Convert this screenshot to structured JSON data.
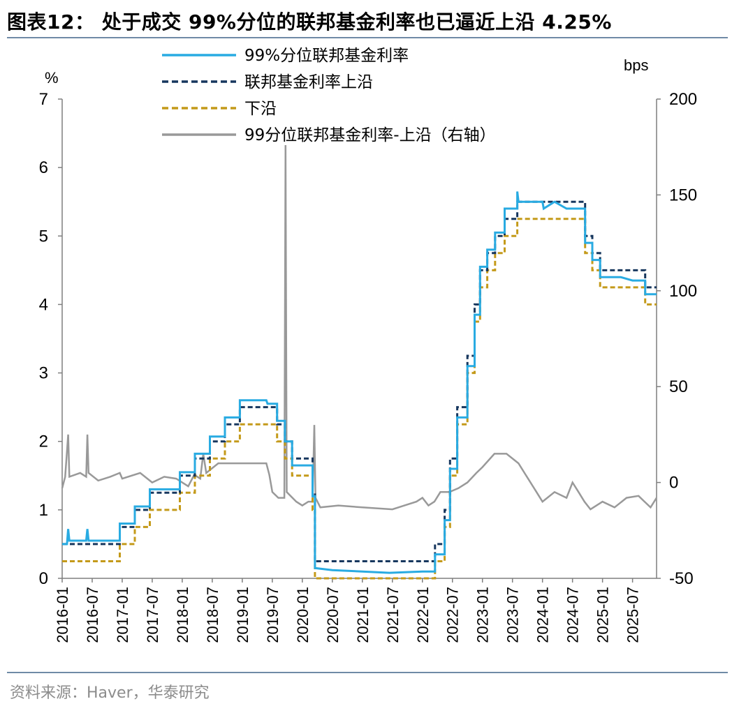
{
  "header": {
    "title": "图表12： 处于成交 99%分位的联邦基金利率也已逼近上沿 4.25%"
  },
  "footer": {
    "source": "资料来源：Haver，华泰研究"
  },
  "chart_data": {
    "type": "line",
    "left_axis": {
      "unit": "%",
      "min": 0,
      "max": 7,
      "ticks": [
        "0",
        "1",
        "2",
        "3",
        "4",
        "5",
        "6",
        "7"
      ]
    },
    "right_axis": {
      "unit": "bps",
      "min": -50,
      "max": 200,
      "ticks": [
        "-50",
        "0",
        "50",
        "100",
        "150",
        "200"
      ]
    },
    "x_axis": {
      "min": 2016.0,
      "max": 2025.9,
      "ticks": [
        "2016-01",
        "2016-07",
        "2017-01",
        "2017-07",
        "2018-01",
        "2018-07",
        "2019-01",
        "2019-07",
        "2020-01",
        "2020-07",
        "2021-01",
        "2021-07",
        "2022-01",
        "2022-07",
        "2023-01",
        "2023-07",
        "2024-01",
        "2024-07",
        "2025-01",
        "2025-07"
      ]
    },
    "legend": {
      "placement": "top",
      "items": [
        {
          "key": "p99",
          "label": "99%分位联邦基金利率",
          "style": "solid",
          "color": "#29abe2"
        },
        {
          "key": "upper",
          "label": "联邦基金利率上沿",
          "style": "dashed",
          "color": "#17375e"
        },
        {
          "key": "lower",
          "label": "下沿",
          "style": "dashed",
          "color": "#c49a1a"
        },
        {
          "key": "spread",
          "label": "99分位联邦基金利率-上沿（右轴）",
          "style": "solid",
          "color": "#999999"
        }
      ]
    },
    "series": [
      {
        "key": "upper",
        "axis": "left",
        "points": [
          [
            2016.0,
            0.5
          ],
          [
            2016.96,
            0.75
          ],
          [
            2017.21,
            1.0
          ],
          [
            2017.46,
            1.25
          ],
          [
            2017.96,
            1.5
          ],
          [
            2018.21,
            1.75
          ],
          [
            2018.46,
            2.0
          ],
          [
            2018.71,
            2.25
          ],
          [
            2018.96,
            2.5
          ],
          [
            2019.58,
            2.25
          ],
          [
            2019.71,
            2.0
          ],
          [
            2019.83,
            1.75
          ],
          [
            2020.17,
            1.25
          ],
          [
            2020.21,
            0.25
          ],
          [
            2022.21,
            0.5
          ],
          [
            2022.37,
            1.0
          ],
          [
            2022.46,
            1.75
          ],
          [
            2022.58,
            2.5
          ],
          [
            2022.75,
            3.25
          ],
          [
            2022.87,
            4.0
          ],
          [
            2022.96,
            4.5
          ],
          [
            2023.08,
            4.75
          ],
          [
            2023.21,
            5.0
          ],
          [
            2023.37,
            5.25
          ],
          [
            2023.58,
            5.5
          ],
          [
            2024.71,
            5.0
          ],
          [
            2024.83,
            4.75
          ],
          [
            2024.96,
            4.5
          ],
          [
            2025.71,
            4.25
          ],
          [
            2025.9,
            4.25
          ]
        ]
      },
      {
        "key": "lower",
        "axis": "left",
        "points": [
          [
            2016.0,
            0.25
          ],
          [
            2016.96,
            0.5
          ],
          [
            2017.21,
            0.75
          ],
          [
            2017.46,
            1.0
          ],
          [
            2017.96,
            1.25
          ],
          [
            2018.21,
            1.5
          ],
          [
            2018.46,
            1.75
          ],
          [
            2018.71,
            2.0
          ],
          [
            2018.96,
            2.25
          ],
          [
            2019.58,
            2.0
          ],
          [
            2019.71,
            1.75
          ],
          [
            2019.83,
            1.5
          ],
          [
            2020.17,
            1.0
          ],
          [
            2020.21,
            0.0
          ],
          [
            2022.21,
            0.25
          ],
          [
            2022.37,
            0.75
          ],
          [
            2022.46,
            1.5
          ],
          [
            2022.58,
            2.25
          ],
          [
            2022.75,
            3.0
          ],
          [
            2022.87,
            3.75
          ],
          [
            2022.96,
            4.25
          ],
          [
            2023.08,
            4.5
          ],
          [
            2023.21,
            4.75
          ],
          [
            2023.37,
            5.0
          ],
          [
            2023.58,
            5.25
          ],
          [
            2024.71,
            4.75
          ],
          [
            2024.83,
            4.5
          ],
          [
            2024.96,
            4.25
          ],
          [
            2025.71,
            4.0
          ],
          [
            2025.9,
            4.0
          ]
        ]
      },
      {
        "key": "p99",
        "axis": "left",
        "points": [
          [
            2016.0,
            0.5
          ],
          [
            2016.08,
            0.5
          ],
          [
            2016.1,
            0.72
          ],
          [
            2016.12,
            0.55
          ],
          [
            2016.4,
            0.55
          ],
          [
            2016.42,
            0.72
          ],
          [
            2016.44,
            0.55
          ],
          [
            2016.96,
            0.55
          ],
          [
            2016.96,
            0.8
          ],
          [
            2017.21,
            0.8
          ],
          [
            2017.21,
            1.05
          ],
          [
            2017.46,
            1.05
          ],
          [
            2017.46,
            1.3
          ],
          [
            2017.96,
            1.3
          ],
          [
            2017.96,
            1.55
          ],
          [
            2018.21,
            1.55
          ],
          [
            2018.21,
            1.82
          ],
          [
            2018.46,
            1.82
          ],
          [
            2018.46,
            2.07
          ],
          [
            2018.71,
            2.07
          ],
          [
            2018.71,
            2.35
          ],
          [
            2018.96,
            2.35
          ],
          [
            2018.96,
            2.6
          ],
          [
            2019.4,
            2.6
          ],
          [
            2019.42,
            2.55
          ],
          [
            2019.58,
            2.55
          ],
          [
            2019.58,
            2.3
          ],
          [
            2019.71,
            2.3
          ],
          [
            2019.71,
            2.0
          ],
          [
            2019.83,
            2.0
          ],
          [
            2019.83,
            1.65
          ],
          [
            2020.17,
            1.65
          ],
          [
            2020.17,
            1.2
          ],
          [
            2020.21,
            1.2
          ],
          [
            2020.21,
            0.15
          ],
          [
            2020.5,
            0.12
          ],
          [
            2021.0,
            0.1
          ],
          [
            2021.45,
            0.08
          ],
          [
            2022.0,
            0.1
          ],
          [
            2022.21,
            0.1
          ],
          [
            2022.21,
            0.35
          ],
          [
            2022.37,
            0.35
          ],
          [
            2022.37,
            0.85
          ],
          [
            2022.46,
            0.85
          ],
          [
            2022.46,
            1.6
          ],
          [
            2022.58,
            1.6
          ],
          [
            2022.58,
            2.35
          ],
          [
            2022.75,
            2.35
          ],
          [
            2022.75,
            3.1
          ],
          [
            2022.87,
            3.1
          ],
          [
            2022.87,
            3.85
          ],
          [
            2022.96,
            3.85
          ],
          [
            2022.96,
            4.55
          ],
          [
            2023.08,
            4.55
          ],
          [
            2023.08,
            4.8
          ],
          [
            2023.21,
            4.8
          ],
          [
            2023.21,
            5.05
          ],
          [
            2023.37,
            5.05
          ],
          [
            2023.37,
            5.4
          ],
          [
            2023.58,
            5.4
          ],
          [
            2023.58,
            5.65
          ],
          [
            2023.6,
            5.5
          ],
          [
            2024.0,
            5.5
          ],
          [
            2024.02,
            5.4
          ],
          [
            2024.2,
            5.5
          ],
          [
            2024.4,
            5.4
          ],
          [
            2024.71,
            5.4
          ],
          [
            2024.71,
            4.9
          ],
          [
            2024.83,
            4.9
          ],
          [
            2024.83,
            4.65
          ],
          [
            2024.96,
            4.65
          ],
          [
            2024.96,
            4.4
          ],
          [
            2025.3,
            4.4
          ],
          [
            2025.5,
            4.35
          ],
          [
            2025.71,
            4.35
          ],
          [
            2025.71,
            4.15
          ],
          [
            2025.9,
            4.15
          ]
        ]
      },
      {
        "key": "spread",
        "axis": "right",
        "points": [
          [
            2016.0,
            -3
          ],
          [
            2016.05,
            3
          ],
          [
            2016.1,
            25
          ],
          [
            2016.12,
            3
          ],
          [
            2016.3,
            5
          ],
          [
            2016.4,
            3
          ],
          [
            2016.42,
            25
          ],
          [
            2016.44,
            5
          ],
          [
            2016.6,
            1
          ],
          [
            2016.8,
            3
          ],
          [
            2016.96,
            5
          ],
          [
            2017.0,
            2
          ],
          [
            2017.3,
            5
          ],
          [
            2017.5,
            0
          ],
          [
            2017.7,
            3
          ],
          [
            2017.9,
            2
          ],
          [
            2018.1,
            -2
          ],
          [
            2018.2,
            4
          ],
          [
            2018.3,
            2
          ],
          [
            2018.35,
            15
          ],
          [
            2018.4,
            5
          ],
          [
            2018.6,
            10
          ],
          [
            2018.8,
            10
          ],
          [
            2018.96,
            10
          ],
          [
            2019.2,
            10
          ],
          [
            2019.4,
            10
          ],
          [
            2019.45,
            4
          ],
          [
            2019.5,
            -5
          ],
          [
            2019.6,
            -8
          ],
          [
            2019.7,
            -8
          ],
          [
            2019.72,
            176
          ],
          [
            2019.74,
            -5
          ],
          [
            2019.9,
            -10
          ],
          [
            2020.0,
            -12
          ],
          [
            2020.1,
            -10
          ],
          [
            2020.17,
            -10
          ],
          [
            2020.2,
            30
          ],
          [
            2020.22,
            -8
          ],
          [
            2020.3,
            -13
          ],
          [
            2020.6,
            -12
          ],
          [
            2021.0,
            -13
          ],
          [
            2021.5,
            -14
          ],
          [
            2021.7,
            -12
          ],
          [
            2021.9,
            -10
          ],
          [
            2022.0,
            -8
          ],
          [
            2022.1,
            -12
          ],
          [
            2022.2,
            -10
          ],
          [
            2022.3,
            -5
          ],
          [
            2022.45,
            -5
          ],
          [
            2022.6,
            -3
          ],
          [
            2022.75,
            0
          ],
          [
            2022.9,
            5
          ],
          [
            2023.0,
            8
          ],
          [
            2023.2,
            15
          ],
          [
            2023.4,
            15
          ],
          [
            2023.6,
            10
          ],
          [
            2023.7,
            5
          ],
          [
            2023.8,
            0
          ],
          [
            2023.9,
            -5
          ],
          [
            2024.0,
            -10
          ],
          [
            2024.2,
            -5
          ],
          [
            2024.4,
            -8
          ],
          [
            2024.5,
            0
          ],
          [
            2024.6,
            -5
          ],
          [
            2024.7,
            -10
          ],
          [
            2024.8,
            -14
          ],
          [
            2025.0,
            -10
          ],
          [
            2025.2,
            -13
          ],
          [
            2025.4,
            -8
          ],
          [
            2025.6,
            -7
          ],
          [
            2025.7,
            -10
          ],
          [
            2025.8,
            -13
          ],
          [
            2025.9,
            -8
          ]
        ]
      }
    ]
  }
}
